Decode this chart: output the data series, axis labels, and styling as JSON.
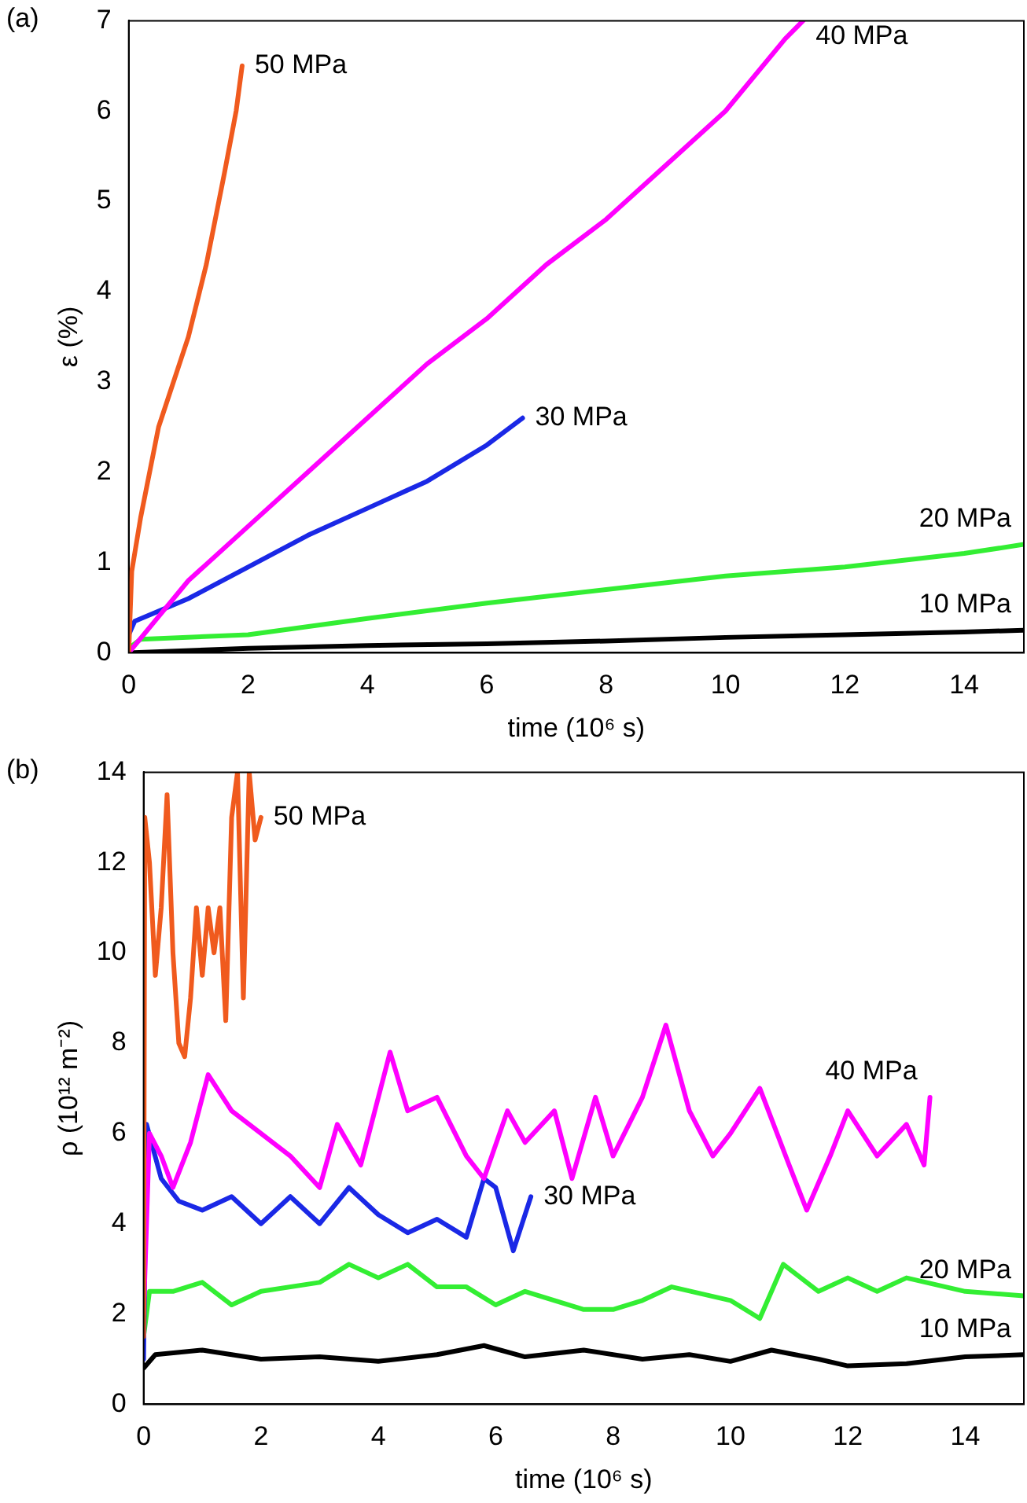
{
  "chart_data": [
    {
      "type": "line",
      "xlabel": "time (10⁶ s)",
      "ylabel": "ε (%)",
      "annotations": [
        "(a)"
      ],
      "xlim": [
        0,
        15
      ],
      "ylim": [
        0,
        7
      ],
      "xticks": [
        0,
        2,
        4,
        6,
        8,
        10,
        12,
        14
      ],
      "yticks": [
        0,
        1,
        2,
        3,
        4,
        5,
        6,
        7
      ],
      "grid": false,
      "legend": false,
      "series": [
        {
          "name": "50 MPa",
          "color": "#f05a1e",
          "x": [
            0,
            0.05,
            0.2,
            0.5,
            1,
            1.3,
            1.6,
            1.8,
            1.9
          ],
          "values": [
            0,
            0.9,
            1.5,
            2.5,
            3.5,
            4.3,
            5.3,
            6,
            6.5
          ]
        },
        {
          "name": "40 MPa",
          "color": "#ff00ff",
          "x": [
            0,
            0.5,
            1,
            2,
            3,
            4,
            5,
            6,
            7,
            8,
            9,
            10,
            11,
            11.3
          ],
          "values": [
            0,
            0.4,
            0.8,
            1.4,
            2,
            2.6,
            3.2,
            3.7,
            4.3,
            4.8,
            5.4,
            6,
            6.8,
            7
          ]
        },
        {
          "name": "30 MPa",
          "color": "#1a28e6",
          "x": [
            0,
            0.1,
            1,
            2,
            3,
            4,
            5,
            6,
            6.6
          ],
          "values": [
            0.2,
            0.35,
            0.6,
            0.95,
            1.3,
            1.6,
            1.9,
            2.3,
            2.6
          ]
        },
        {
          "name": "20 MPa",
          "color": "#33ee33",
          "x": [
            0,
            0.2,
            2,
            4,
            6,
            8,
            10,
            12,
            14,
            15
          ],
          "values": [
            0.05,
            0.15,
            0.2,
            0.38,
            0.55,
            0.7,
            0.85,
            0.95,
            1.1,
            1.2
          ]
        },
        {
          "name": "10 MPa",
          "color": "#000000",
          "x": [
            0,
            2,
            4,
            6,
            8,
            10,
            12,
            14,
            15
          ],
          "values": [
            0,
            0.05,
            0.08,
            0.1,
            0.13,
            0.17,
            0.2,
            0.23,
            0.25
          ]
        }
      ]
    },
    {
      "type": "line",
      "xlabel": "time (10⁶ s)",
      "ylabel": "ρ (10¹² m⁻²)",
      "annotations": [
        "(b)"
      ],
      "xlim": [
        0,
        15
      ],
      "ylim": [
        0,
        14
      ],
      "xticks": [
        0,
        2,
        4,
        6,
        8,
        10,
        12,
        14
      ],
      "yticks": [
        0,
        2,
        4,
        6,
        8,
        10,
        12,
        14
      ],
      "grid": false,
      "legend": false,
      "series": [
        {
          "name": "50 MPa",
          "color": "#f05a1e",
          "x": [
            0,
            0.02,
            0.1,
            0.2,
            0.3,
            0.4,
            0.5,
            0.6,
            0.7,
            0.8,
            0.9,
            1,
            1.1,
            1.2,
            1.3,
            1.4,
            1.5,
            1.6,
            1.7,
            1.8,
            1.9,
            2
          ],
          "values": [
            1.5,
            13,
            12,
            9.5,
            11,
            13.5,
            10,
            8,
            7.7,
            9,
            11,
            9.5,
            11,
            10,
            11,
            8.5,
            13,
            14,
            9,
            14,
            12.5,
            13
          ]
        },
        {
          "name": "40 MPa",
          "color": "#ff00ff",
          "x": [
            0,
            0.1,
            0.3,
            0.5,
            0.8,
            1.1,
            1.5,
            2,
            2.5,
            3,
            3.3,
            3.7,
            4.2,
            4.5,
            5,
            5.5,
            5.8,
            6.2,
            6.5,
            7,
            7.3,
            7.7,
            8,
            8.5,
            8.9,
            9.3,
            9.7,
            10,
            10.5,
            11,
            11.3,
            11.7,
            12,
            12.5,
            13,
            13.3,
            13.4
          ],
          "values": [
            2,
            6,
            5.5,
            4.8,
            5.8,
            7.3,
            6.5,
            6,
            5.5,
            4.8,
            6.2,
            5.3,
            7.8,
            6.5,
            6.8,
            5.5,
            5,
            6.5,
            5.8,
            6.5,
            5,
            6.8,
            5.5,
            6.8,
            8.4,
            6.5,
            5.5,
            6,
            7,
            5.3,
            4.3,
            5.5,
            6.5,
            5.5,
            6.2,
            5.3,
            6.8
          ]
        },
        {
          "name": "30 MPa",
          "color": "#1a28e6",
          "x": [
            0,
            0.05,
            0.3,
            0.6,
            1,
            1.5,
            2,
            2.5,
            3,
            3.5,
            4,
            4.5,
            5,
            5.5,
            5.8,
            6,
            6.3,
            6.6
          ],
          "values": [
            1,
            6.2,
            5,
            4.5,
            4.3,
            4.6,
            4,
            4.6,
            4,
            4.8,
            4.2,
            3.8,
            4.1,
            3.7,
            5,
            4.8,
            3.4,
            4.6
          ]
        },
        {
          "name": "20 MPa",
          "color": "#33ee33",
          "x": [
            0,
            0.1,
            0.5,
            1,
            1.5,
            2,
            3,
            3.5,
            4,
            4.5,
            5,
            5.5,
            6,
            6.5,
            7,
            7.5,
            8,
            8.5,
            9,
            10,
            10.5,
            10.9,
            11.5,
            12,
            12.5,
            13,
            14,
            15
          ],
          "values": [
            1.5,
            2.5,
            2.5,
            2.7,
            2.2,
            2.5,
            2.7,
            3.1,
            2.8,
            3.1,
            2.6,
            2.6,
            2.2,
            2.5,
            2.3,
            2.1,
            2.1,
            2.3,
            2.6,
            2.3,
            1.9,
            3.1,
            2.5,
            2.8,
            2.5,
            2.8,
            2.5,
            2.4
          ]
        },
        {
          "name": "10 MPa",
          "color": "#000000",
          "x": [
            0,
            0.2,
            1,
            2,
            3,
            4,
            5,
            5.8,
            6.5,
            7.5,
            8.5,
            9.3,
            10,
            10.7,
            11.5,
            12,
            13,
            14,
            15
          ],
          "values": [
            0.8,
            1.1,
            1.2,
            1,
            1.05,
            0.95,
            1.1,
            1.3,
            1.05,
            1.2,
            1,
            1.1,
            0.95,
            1.2,
            1,
            0.85,
            0.9,
            1.05,
            1.1
          ]
        }
      ]
    }
  ]
}
